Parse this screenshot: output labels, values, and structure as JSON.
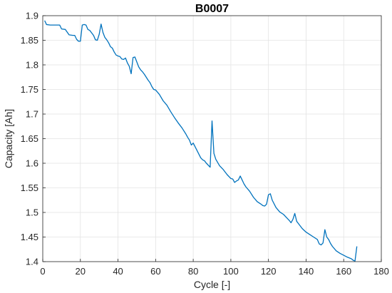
{
  "chart_data": {
    "type": "line",
    "title": "B0007",
    "xlabel": "Cycle [-]",
    "ylabel": "Capacity [Ah]",
    "xlim": [
      0,
      180
    ],
    "ylim": [
      1.4,
      1.9
    ],
    "xticks": [
      "0",
      "20",
      "40",
      "60",
      "80",
      "100",
      "120",
      "140",
      "160",
      "180"
    ],
    "yticks": [
      "1.4",
      "1.45",
      "1.5",
      "1.55",
      "1.6",
      "1.65",
      "1.7",
      "1.75",
      "1.8",
      "1.85",
      "1.9"
    ],
    "grid": true,
    "line_color": "#0072BD",
    "series": [
      {
        "x": [
          1,
          2,
          4,
          7,
          9,
          10,
          12,
          14,
          16,
          17,
          18,
          19,
          20,
          21,
          22,
          23,
          24,
          25,
          27,
          28,
          29,
          30,
          31,
          32,
          33,
          34,
          35,
          36,
          37,
          38,
          39,
          40,
          41,
          42,
          43,
          44,
          45,
          46,
          47,
          48,
          49,
          50,
          51,
          52,
          53,
          54,
          55,
          56,
          57,
          58,
          59,
          60,
          62,
          64,
          66,
          68,
          70,
          72,
          74,
          76,
          77,
          78,
          79,
          80,
          82,
          84,
          85,
          86,
          87,
          88,
          89,
          90,
          91,
          92,
          94,
          96,
          98,
          100,
          101,
          102,
          103,
          104,
          105,
          106,
          107,
          108,
          110,
          112,
          114,
          116,
          117,
          118,
          119,
          120,
          121,
          122,
          124,
          126,
          128,
          130,
          131,
          132,
          133,
          134,
          135,
          136,
          138,
          140,
          142,
          144,
          146,
          147,
          148,
          149,
          150,
          151,
          152,
          153,
          154,
          156,
          158,
          160,
          162,
          164,
          165,
          166,
          167
        ],
        "y": [
          1.89,
          1.882,
          1.881,
          1.881,
          1.881,
          1.873,
          1.872,
          1.861,
          1.86,
          1.86,
          1.852,
          1.848,
          1.848,
          1.881,
          1.882,
          1.881,
          1.872,
          1.87,
          1.86,
          1.851,
          1.85,
          1.862,
          1.883,
          1.866,
          1.856,
          1.851,
          1.845,
          1.837,
          1.834,
          1.826,
          1.82,
          1.818,
          1.817,
          1.812,
          1.811,
          1.814,
          1.804,
          1.797,
          1.782,
          1.815,
          1.816,
          1.806,
          1.796,
          1.79,
          1.786,
          1.781,
          1.775,
          1.769,
          1.764,
          1.756,
          1.75,
          1.749,
          1.74,
          1.727,
          1.718,
          1.705,
          1.693,
          1.682,
          1.672,
          1.66,
          1.653,
          1.647,
          1.637,
          1.641,
          1.626,
          1.611,
          1.607,
          1.605,
          1.6,
          1.596,
          1.592,
          1.686,
          1.62,
          1.608,
          1.595,
          1.587,
          1.577,
          1.569,
          1.568,
          1.561,
          1.564,
          1.566,
          1.574,
          1.566,
          1.558,
          1.552,
          1.543,
          1.531,
          1.522,
          1.517,
          1.514,
          1.513,
          1.517,
          1.536,
          1.538,
          1.525,
          1.51,
          1.501,
          1.496,
          1.488,
          1.484,
          1.479,
          1.486,
          1.498,
          1.482,
          1.477,
          1.467,
          1.46,
          1.455,
          1.45,
          1.445,
          1.436,
          1.434,
          1.438,
          1.465,
          1.45,
          1.445,
          1.437,
          1.431,
          1.422,
          1.417,
          1.413,
          1.409,
          1.406,
          1.403,
          1.401,
          1.431
        ]
      }
    ]
  }
}
